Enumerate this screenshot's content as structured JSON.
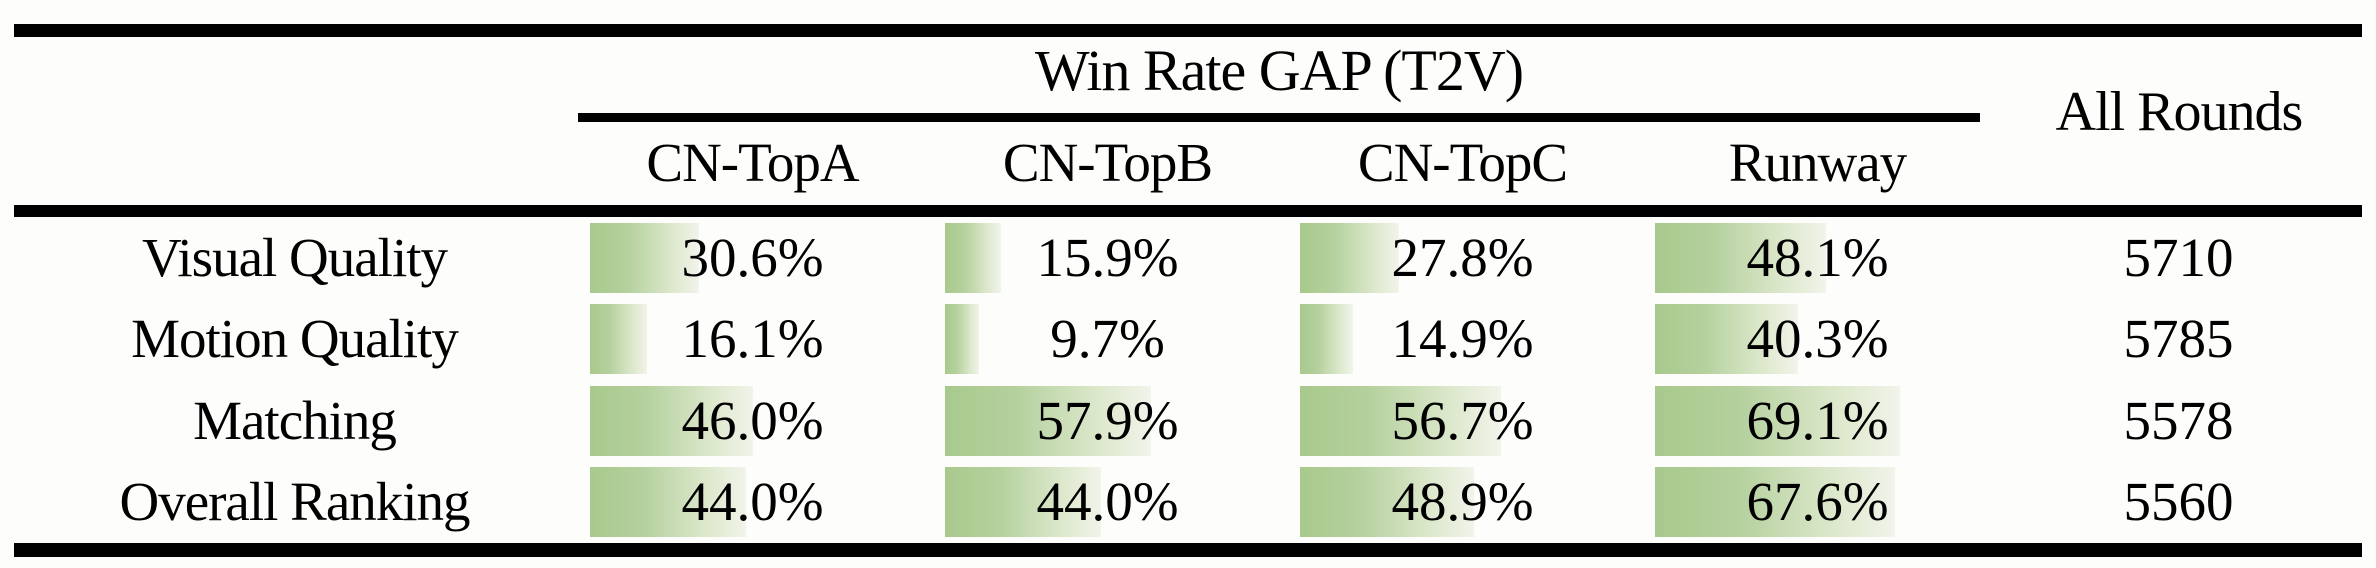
{
  "table": {
    "group_header": "Win Rate GAP (T2V)",
    "all_rounds_header": "All Rounds",
    "columns": [
      "CN-TopA",
      "CN-TopB",
      "CN-TopC",
      "Runway"
    ],
    "rows": [
      {
        "label": "Visual Quality",
        "values": [
          {
            "pct": 30.6,
            "label": "30.6%"
          },
          {
            "pct": 15.9,
            "label": "15.9%"
          },
          {
            "pct": 27.8,
            "label": "27.8%"
          },
          {
            "pct": 48.1,
            "label": "48.1%"
          }
        ],
        "rounds": "5710"
      },
      {
        "label": "Motion Quality",
        "values": [
          {
            "pct": 16.1,
            "label": "16.1%"
          },
          {
            "pct": 9.7,
            "label": "9.7%"
          },
          {
            "pct": 14.9,
            "label": "14.9%"
          },
          {
            "pct": 40.3,
            "label": "40.3%"
          }
        ],
        "rounds": "5785"
      },
      {
        "label": "Matching",
        "values": [
          {
            "pct": 46.0,
            "label": "46.0%"
          },
          {
            "pct": 57.9,
            "label": "57.9%"
          },
          {
            "pct": 56.7,
            "label": "56.7%"
          },
          {
            "pct": 69.1,
            "label": "69.1%"
          }
        ],
        "rounds": "5578"
      },
      {
        "label": "Overall Ranking",
        "values": [
          {
            "pct": 44.0,
            "label": "44.0%"
          },
          {
            "pct": 44.0,
            "label": "44.0%"
          },
          {
            "pct": 48.9,
            "label": "48.9%"
          },
          {
            "pct": 67.6,
            "label": "67.6%"
          }
        ],
        "rounds": "5560"
      }
    ]
  },
  "colors": {
    "bar_gradient_start": "#a8c98c",
    "bar_gradient_end": "#f1f4ea",
    "rule": "#010101",
    "background": "#fdfdfc",
    "text": "#000000"
  },
  "chart_data": {
    "type": "bar",
    "title": "Win Rate GAP (T2V)",
    "categories": [
      "Visual Quality",
      "Motion Quality",
      "Matching",
      "Overall Ranking"
    ],
    "series": [
      {
        "name": "CN-TopA",
        "values": [
          30.6,
          16.1,
          46.0,
          44.0
        ]
      },
      {
        "name": "CN-TopB",
        "values": [
          15.9,
          9.7,
          57.9,
          44.0
        ]
      },
      {
        "name": "CN-TopC",
        "values": [
          27.8,
          14.9,
          56.7,
          48.9
        ]
      },
      {
        "name": "Runway",
        "values": [
          48.1,
          40.3,
          69.1,
          67.6
        ]
      }
    ],
    "all_rounds": [
      5710,
      5785,
      5578,
      5560
    ],
    "unit": "%",
    "xlim": [
      0,
      100
    ],
    "layout": "horizontal-bars-in-table-cells, bar length proportional to percent of cell width"
  }
}
